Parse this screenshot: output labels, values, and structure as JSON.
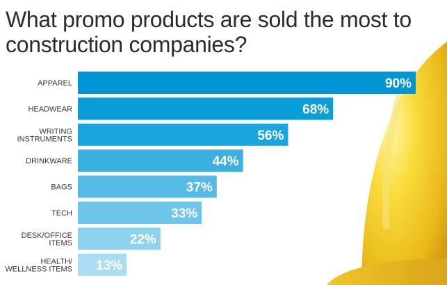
{
  "title": "What promo products are sold the most to construction companies?",
  "chart_data": {
    "type": "bar",
    "orientation": "horizontal",
    "title": "What promo products are sold the most to construction companies?",
    "categories": [
      [
        "APPAREL"
      ],
      [
        "HEADWEAR"
      ],
      [
        "WRITING",
        "INSTRUMENTS"
      ],
      [
        "DRINKWARE"
      ],
      [
        "BAGS"
      ],
      [
        "TECH"
      ],
      [
        "DESK/OFFICE",
        "ITEMS"
      ],
      [
        "HEALTH/",
        "WELLNESS ITEMS"
      ]
    ],
    "values": [
      90,
      68,
      56,
      44,
      37,
      33,
      22,
      13
    ],
    "value_labels": [
      "90%",
      "68%",
      "56%",
      "44%",
      "37%",
      "33%",
      "22%",
      "13%"
    ],
    "xlim": [
      0,
      100
    ],
    "unit": "%",
    "grid": false,
    "colors": [
      "#0096d6",
      "#0a9ed9",
      "#1aa6dd",
      "#3bb1e2",
      "#55bbe6",
      "#6ec5ea",
      "#8dd2ef",
      "#a8ddf3"
    ]
  },
  "background": {
    "hardhat_color": "#f5cf2a"
  }
}
